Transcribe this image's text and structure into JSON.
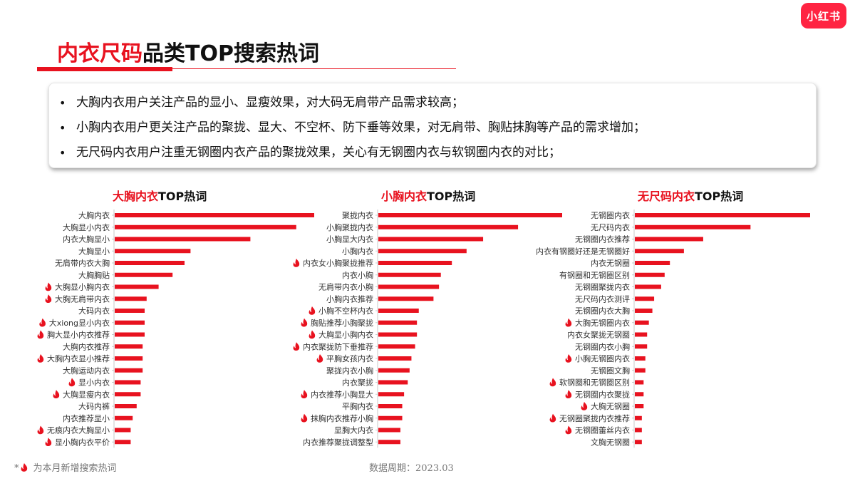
{
  "logo": "小红书",
  "title": {
    "accent": "内衣尺码",
    "rest": "品类TOP搜索热词"
  },
  "summary": [
    "大胸内衣用户关注产品的显小、显瘦效果，对大码无肩带产品需求较高；",
    "小胸内衣用户更关注产品的聚拢、显大、不空杯、防下垂等效果，对无肩带、胸贴抹胸等产品的需求增加；",
    "无尺码内衣用户注重无钢圈内衣产品的聚拢效果，关心有无钢圈内衣与软钢圈内衣的对比；"
  ],
  "footer": {
    "prefix": "*",
    "note": "为本月新增搜索热词",
    "date": "数据周期：2023.03"
  },
  "colors": {
    "accent": "#e8121f",
    "bar": "#e8121f",
    "new_marker": "#e8121f"
  },
  "chart_data": [
    {
      "type": "bar",
      "orientation": "horizontal",
      "title_accent": "大胸内衣",
      "title_rest": "TOP热词",
      "categories": [
        "大胸内衣",
        "大胸显小内衣",
        "内衣大胸显小",
        "大胸显小",
        "无肩带内衣大胸",
        "大胸胸贴",
        "大胸显小胸内衣",
        "大胸无肩带内衣",
        "大码内衣",
        "大xiong显小内衣",
        "胸大显小内衣推荐",
        "大胸内衣推荐",
        "大胸内衣显小推荐",
        "大胸运动内衣",
        "显小内衣",
        "大胸显瘦内衣",
        "大码内裤",
        "内衣推荐显小",
        "无痕内衣大胸显小",
        "显小胸内衣平价"
      ],
      "values": [
        100,
        91,
        68,
        38,
        35,
        29,
        22,
        16,
        15,
        15,
        15,
        14,
        14,
        14,
        13,
        13,
        11,
        9,
        8,
        8
      ],
      "new": [
        false,
        false,
        false,
        false,
        false,
        false,
        true,
        true,
        false,
        true,
        true,
        false,
        true,
        false,
        true,
        true,
        false,
        false,
        true,
        true
      ]
    },
    {
      "type": "bar",
      "orientation": "horizontal",
      "title_accent": "小胸内衣",
      "title_rest": "TOP热词",
      "categories": [
        "聚拢内衣",
        "小胸聚拢内衣",
        "小胸显大内衣",
        "小胸内衣",
        "内衣女小胸聚拢推荐",
        "内衣小胸",
        "无肩带内衣小胸",
        "小胸内衣推荐",
        "小胸不空杯内衣",
        "胸贴推荐小胸聚拢",
        "大胸显小胸内衣",
        "内衣聚拢防下垂推荐",
        "平胸女孩内衣",
        "聚拢内衣小胸",
        "内衣聚拢",
        "内衣推荐小胸显大",
        "平胸内衣",
        "抹胸内衣推荐小胸",
        "显胸大内衣",
        "内衣推荐聚拢调整型"
      ],
      "values": [
        100,
        76,
        57,
        48,
        40,
        34,
        33,
        30,
        22,
        21,
        21,
        20,
        18,
        17,
        16,
        14,
        13,
        13,
        12,
        12
      ],
      "new": [
        false,
        false,
        false,
        false,
        true,
        false,
        false,
        false,
        true,
        true,
        true,
        true,
        true,
        false,
        false,
        true,
        false,
        true,
        false,
        false
      ]
    },
    {
      "type": "bar",
      "orientation": "horizontal",
      "title_accent": "无尺码内衣",
      "title_rest": "TOP热词",
      "categories": [
        "无钢圈内衣",
        "无尺码内衣",
        "无钢圈内衣推荐",
        "内衣有钢圈好还是无钢圈好",
        "内衣无钢圈",
        "有钢圈和无钢圈区别",
        "无钢圈聚拢内衣",
        "无尺码内衣测评",
        "无钢圈内衣大胸",
        "大胸无钢圈内衣",
        "内衣女聚拢无钢圈",
        "无钢圈内衣小胸",
        "小胸无钢圈内衣",
        "无钢圈文胸",
        "软钢圈和无钢圈区别",
        "无钢圈内衣聚拢",
        "大胸无钢圈",
        "无钢圈聚拢内衣推荐",
        "无钢圈蕾丝内衣",
        "文胸无钢圈"
      ],
      "values": [
        100,
        66,
        39,
        28,
        20,
        17,
        15,
        11,
        10,
        8,
        7,
        7,
        6,
        6,
        5,
        5,
        5,
        4,
        4,
        4
      ],
      "new": [
        false,
        false,
        false,
        false,
        false,
        false,
        false,
        false,
        false,
        true,
        false,
        false,
        true,
        false,
        true,
        true,
        true,
        true,
        true,
        false
      ]
    }
  ]
}
